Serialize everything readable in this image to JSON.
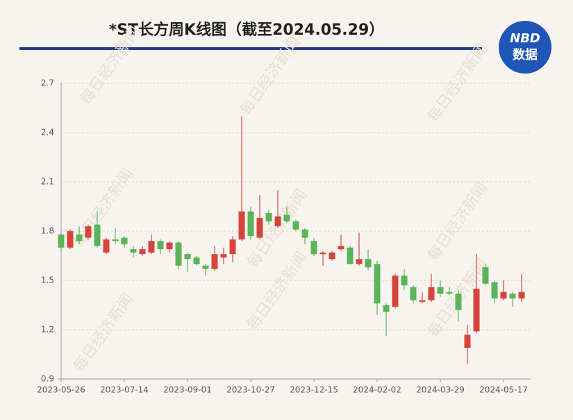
{
  "chart_data": {
    "type": "candlestick",
    "title": "*ST长方周K线图（截至2024.05.29）",
    "logo": {
      "top": "NBD",
      "bottom": "数据"
    },
    "watermark": "每日经济新闻",
    "categories": [
      "2023-05-26",
      null,
      null,
      null,
      null,
      null,
      null,
      "2023-07-14",
      null,
      null,
      null,
      null,
      null,
      null,
      "2023-09-01",
      null,
      null,
      null,
      null,
      null,
      null,
      "2023-10-27",
      null,
      null,
      null,
      null,
      null,
      null,
      "2023-12-15",
      null,
      null,
      null,
      null,
      null,
      null,
      "2024-02-02",
      null,
      null,
      null,
      null,
      null,
      null,
      "2024-03-29",
      null,
      null,
      null,
      null,
      null,
      null,
      "2024-05-17",
      null,
      null
    ],
    "open": [
      1.78,
      1.7,
      1.78,
      1.76,
      1.84,
      1.67,
      1.75,
      1.76,
      1.69,
      1.66,
      1.67,
      1.74,
      1.69,
      1.73,
      1.66,
      1.64,
      1.59,
      1.57,
      1.64,
      1.66,
      1.75,
      1.92,
      1.76,
      1.91,
      1.83,
      1.9,
      1.86,
      1.81,
      1.74,
      1.66,
      1.63,
      1.69,
      1.7,
      1.6,
      1.63,
      1.6,
      1.35,
      1.34,
      1.53,
      1.46,
      1.37,
      1.38,
      1.46,
      1.43,
      1.42,
      1.09,
      1.19,
      1.58,
      1.49,
      1.39,
      1.42,
      1.39
    ],
    "high": [
      1.79,
      1.81,
      1.83,
      1.84,
      1.92,
      1.76,
      1.82,
      1.77,
      1.71,
      1.71,
      1.78,
      1.75,
      1.74,
      1.74,
      1.67,
      1.65,
      1.6,
      1.71,
      1.7,
      1.77,
      2.5,
      1.95,
      2.02,
      1.93,
      2.05,
      1.95,
      1.87,
      1.82,
      1.76,
      1.68,
      1.68,
      1.78,
      1.71,
      1.79,
      1.69,
      1.62,
      1.36,
      1.54,
      1.57,
      1.47,
      1.43,
      1.54,
      1.5,
      1.46,
      1.44,
      1.23,
      1.66,
      1.6,
      1.5,
      1.5,
      1.43,
      1.54
    ],
    "low": [
      1.67,
      1.69,
      1.72,
      1.75,
      1.7,
      1.66,
      1.72,
      1.7,
      1.64,
      1.65,
      1.66,
      1.66,
      1.67,
      1.57,
      1.55,
      1.59,
      1.53,
      1.56,
      1.6,
      1.61,
      1.74,
      1.75,
      1.75,
      1.84,
      1.82,
      1.85,
      1.8,
      1.72,
      1.65,
      1.59,
      1.62,
      1.68,
      1.6,
      1.59,
      1.56,
      1.29,
      1.16,
      1.33,
      1.44,
      1.36,
      1.36,
      1.37,
      1.4,
      1.41,
      1.25,
      0.99,
      1.18,
      1.47,
      1.36,
      1.38,
      1.34,
      1.37
    ],
    "close": [
      1.7,
      1.8,
      1.74,
      1.83,
      1.71,
      1.75,
      1.74,
      1.72,
      1.67,
      1.69,
      1.74,
      1.69,
      1.73,
      1.59,
      1.63,
      1.6,
      1.57,
      1.66,
      1.66,
      1.75,
      1.92,
      1.77,
      1.88,
      1.86,
      1.89,
      1.86,
      1.81,
      1.76,
      1.66,
      1.67,
      1.67,
      1.71,
      1.6,
      1.63,
      1.58,
      1.36,
      1.31,
      1.53,
      1.47,
      1.38,
      1.38,
      1.46,
      1.42,
      1.42,
      1.32,
      1.17,
      1.45,
      1.48,
      1.39,
      1.43,
      1.39,
      1.43
    ],
    "up_color": "#d6453c",
    "down_color": "#5bb35a",
    "ylim": [
      0.9,
      2.7
    ],
    "yticks": [
      0.9,
      1.2,
      1.5,
      1.8,
      2.1,
      2.4,
      2.7
    ],
    "grid": true
  }
}
